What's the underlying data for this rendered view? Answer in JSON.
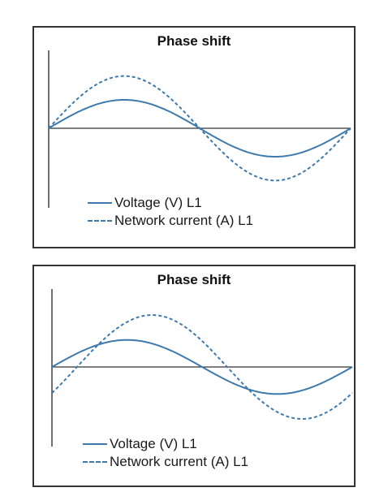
{
  "colors": {
    "series": "#3d79ac",
    "axis": "#333333",
    "border": "#333333"
  },
  "chart_data": [
    {
      "type": "line",
      "title": "Phase shift",
      "xlim": [
        0,
        360
      ],
      "ylim": [
        -1.4,
        1.4
      ],
      "series": [
        {
          "name": "Voltage (V) L1",
          "style": "solid",
          "amplitude": 0.5,
          "phase_deg": 0
        },
        {
          "name": "Network current (A) L1",
          "style": "dashed",
          "amplitude": 0.92,
          "phase_deg": 0
        }
      ],
      "legend": "bottom-left"
    },
    {
      "type": "line",
      "title": "Phase shift",
      "xlim": [
        0,
        360
      ],
      "ylim": [
        -1.4,
        1.4
      ],
      "series": [
        {
          "name": "Voltage (V) L1",
          "style": "solid",
          "amplitude": 0.52,
          "phase_deg": 0
        },
        {
          "name": "Network current (A) L1",
          "style": "dashed",
          "amplitude": 1.0,
          "phase_deg": -30
        }
      ],
      "legend": "bottom-left"
    }
  ]
}
